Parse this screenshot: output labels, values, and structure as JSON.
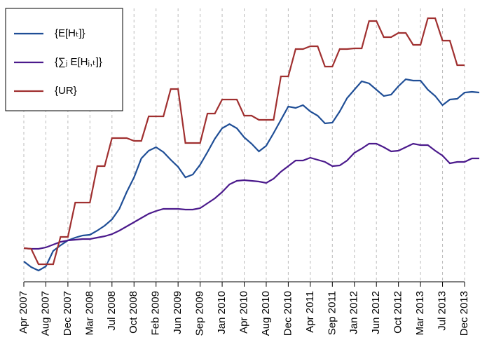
{
  "chart_data": {
    "type": "line",
    "categories": [
      "Apr 2007",
      null,
      null,
      "Aug 2007",
      null,
      null,
      "Dec 2007",
      null,
      null,
      "Mar 2008",
      null,
      null,
      "Jul 2008",
      null,
      null,
      "Oct 2008",
      null,
      null,
      "Feb 2009",
      null,
      null,
      "Jun 2009",
      null,
      null,
      "Sep 2009",
      null,
      null,
      "Jan 2010",
      null,
      null,
      "Apr 2010",
      null,
      null,
      "Aug 2010",
      null,
      null,
      "Dec 2010",
      null,
      null,
      "Apr 2011",
      null,
      null,
      "Sep 2011",
      null,
      null,
      "Jan 2012",
      null,
      null,
      "Jun 2012",
      null,
      null,
      "Oct 2012",
      null,
      null,
      "Mar 2013",
      null,
      null,
      "Jul 2013",
      null,
      null,
      "Dec 2013",
      null,
      null
    ],
    "series": [
      {
        "name": "{E[Hₜ]}",
        "color": "#1f4e96",
        "values": [
          29,
          21,
          16,
          22,
          44,
          52,
          59,
          63,
          66,
          67,
          73,
          80,
          89,
          104,
          128,
          149,
          176,
          187,
          192,
          185,
          174,
          164,
          149,
          153,
          167,
          185,
          204,
          219,
          225,
          219,
          206,
          197,
          186,
          194,
          212,
          231,
          250,
          248,
          252,
          243,
          237,
          226,
          227,
          243,
          262,
          274,
          286,
          283,
          274,
          265,
          267,
          279,
          289,
          287,
          287,
          274,
          265,
          252,
          260,
          261,
          270,
          271,
          270
        ]
      },
      {
        "name": "{∑ⱼ E[Hⱼ,ₜ]}",
        "color": "#4b1a8c",
        "values": [
          48,
          47,
          47,
          49,
          53,
          57,
          59,
          60,
          61,
          61,
          63,
          65,
          68,
          73,
          79,
          85,
          91,
          97,
          101,
          104,
          104,
          104,
          103,
          103,
          105,
          112,
          119,
          128,
          139,
          144,
          145,
          144,
          143,
          141,
          147,
          157,
          165,
          173,
          173,
          177,
          174,
          171,
          165,
          166,
          173,
          184,
          190,
          197,
          197,
          192,
          186,
          187,
          192,
          197,
          195,
          195,
          187,
          180,
          169,
          171,
          171,
          176,
          176
        ]
      },
      {
        "name": "{UR}",
        "color": "#a03030",
        "values": [
          48,
          47,
          25,
          25,
          25,
          64,
          64,
          113,
          113,
          113,
          165,
          165,
          205,
          205,
          205,
          201,
          201,
          236,
          236,
          236,
          275,
          275,
          198,
          198,
          198,
          240,
          240,
          260,
          260,
          260,
          237,
          237,
          231,
          231,
          231,
          293,
          293,
          332,
          332,
          336,
          336,
          307,
          307,
          332,
          332,
          333,
          333,
          372,
          372,
          349,
          349,
          355,
          355,
          338,
          338,
          376,
          376,
          344,
          344,
          309,
          309,
          null,
          null
        ]
      }
    ],
    "ylim": [
      0,
      390
    ],
    "grid": true,
    "legend": "top-left"
  }
}
